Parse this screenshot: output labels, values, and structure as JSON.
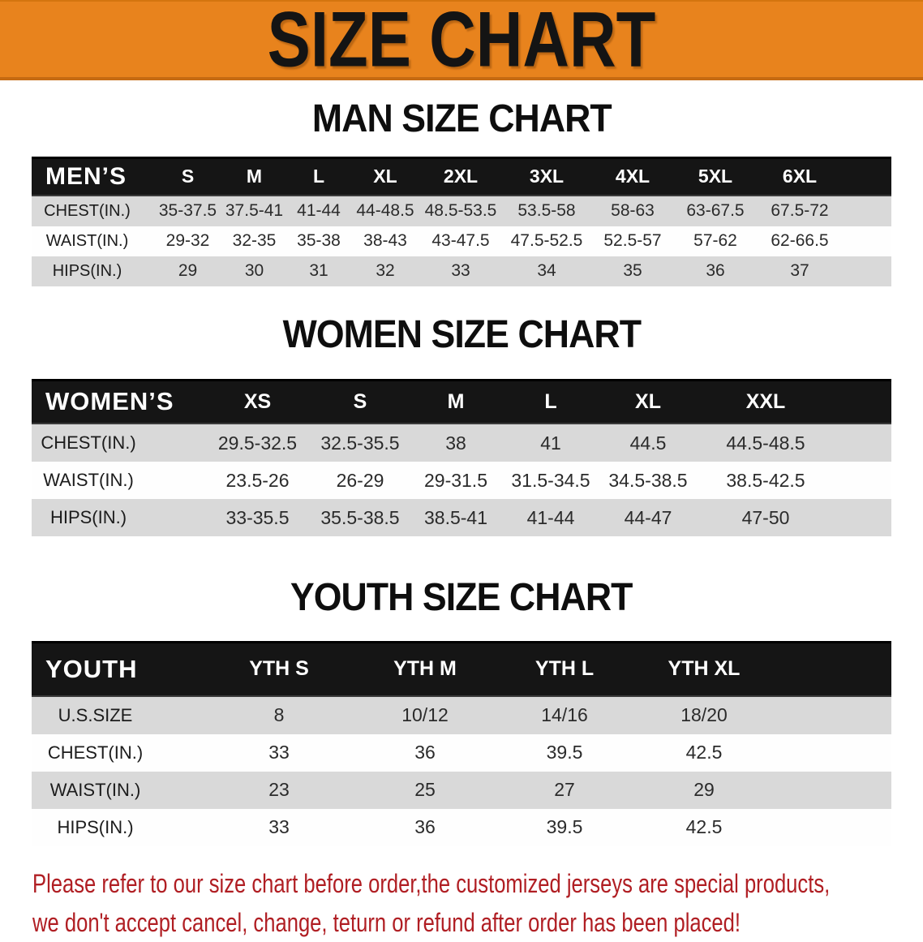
{
  "banner": {
    "title": "SIZE CHART"
  },
  "colors": {
    "banner_orange": "#E8831D",
    "banner_edge_dark": "#C56A12",
    "table_header_black": "#151515",
    "row_gray": "#D9D9D9",
    "row_white": "#FEFEFE",
    "disclaimer_red": "#B01E23",
    "heading_black": "#0E0E0E"
  },
  "men": {
    "heading": "MAN SIZE CHART",
    "table": {
      "header": [
        "MEN’S",
        "S",
        "M",
        "L",
        "XL",
        "2XL",
        "3XL",
        "4XL",
        "5XL",
        "6XL"
      ],
      "rows": [
        {
          "label": "CHEST(IN.)",
          "values": [
            "35-37.5",
            "37.5-41",
            "41-44",
            "44-48.5",
            "48.5-53.5",
            "53.5-58",
            "58-63",
            "63-67.5",
            "67.5-72"
          ]
        },
        {
          "label": "WAIST(IN.)",
          "values": [
            "29-32",
            "32-35",
            "35-38",
            "38-43",
            "43-47.5",
            "47.5-52.5",
            "52.5-57",
            "57-62",
            "62-66.5"
          ]
        },
        {
          "label": "HIPS(IN.)",
          "values": [
            "29",
            "30",
            "31",
            "32",
            "33",
            "34",
            "35",
            "36",
            "37"
          ]
        }
      ]
    }
  },
  "women": {
    "heading": "WOMEN SIZE CHART",
    "table": {
      "header": [
        "WOMEN’S",
        "XS",
        "S",
        "M",
        "L",
        "XL",
        "XXL"
      ],
      "rows": [
        {
          "label": "CHEST(IN.)",
          "values": [
            "29.5-32.5",
            "32.5-35.5",
            "38",
            "41",
            "44.5",
            "44.5-48.5"
          ]
        },
        {
          "label": "WAIST(IN.)",
          "values": [
            "23.5-26",
            "26-29",
            "29-31.5",
            "31.5-34.5",
            "34.5-38.5",
            "38.5-42.5"
          ]
        },
        {
          "label": "HIPS(IN.)",
          "values": [
            "33-35.5",
            "35.5-38.5",
            "38.5-41",
            "41-44",
            "44-47",
            "47-50"
          ]
        }
      ]
    }
  },
  "youth": {
    "heading": "YOUTH SIZE CHART",
    "table": {
      "header": [
        "YOUTH",
        "YTH S",
        "YTH M",
        "YTH L",
        "YTH XL"
      ],
      "rows": [
        {
          "label": "U.S.SIZE",
          "values": [
            "8",
            "10/12",
            "14/16",
            "18/20"
          ]
        },
        {
          "label": "CHEST(IN.)",
          "values": [
            "33",
            "36",
            "39.5",
            "42.5"
          ]
        },
        {
          "label": "WAIST(IN.)",
          "values": [
            "23",
            "25",
            "27",
            "29"
          ]
        },
        {
          "label": "HIPS(IN.)",
          "values": [
            "33",
            "36",
            "39.5",
            "42.5"
          ]
        }
      ]
    }
  },
  "disclaimer": {
    "line1": "Please refer to our size chart before order,the customized jerseys are special products,",
    "line2": "we don't accept cancel, change, teturn or refund after order has been placed!"
  }
}
